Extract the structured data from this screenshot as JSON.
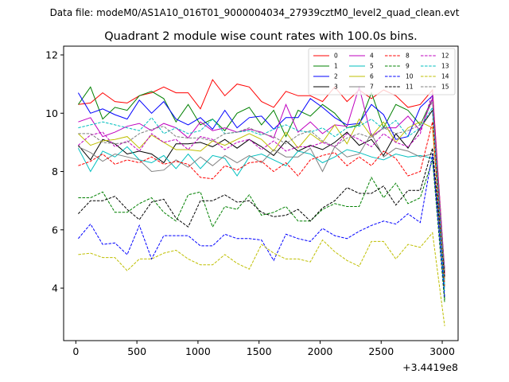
{
  "header": {
    "file_label": "Data file: modeM0/AS1A10_016T01_9000004034_27939cztM0_level2_quad_clean.evt"
  },
  "chart_data": {
    "type": "line",
    "title": "Quadrant 2 module wise count rates with 100.0s bins.",
    "xlabel": "",
    "ylabel": "",
    "x_offset_label": "+3.4419e8",
    "xlim": [
      -100,
      3130
    ],
    "ylim": [
      2.2,
      12.3
    ],
    "xticks": [
      0,
      500,
      1000,
      1500,
      2000,
      2500,
      3000
    ],
    "xtick_labels": [
      "0",
      "500",
      "1000",
      "1500",
      "2000",
      "2500",
      "3000"
    ],
    "yticks": [
      4,
      6,
      8,
      10,
      12
    ],
    "ytick_labels": [
      "4",
      "6",
      "8",
      "10",
      "12"
    ],
    "grid": false,
    "legend_position": "top-right",
    "x": [
      20,
      120,
      220,
      320,
      420,
      520,
      620,
      720,
      820,
      920,
      1020,
      1120,
      1220,
      1320,
      1420,
      1520,
      1620,
      1720,
      1820,
      1920,
      2020,
      2120,
      2220,
      2320,
      2420,
      2520,
      2620,
      2720,
      2820,
      2920,
      3020
    ],
    "series": [
      {
        "name": "0",
        "color": "#ff0000",
        "dash": "solid",
        "values": [
          10.3,
          10.35,
          10.7,
          10.4,
          10.35,
          10.6,
          10.7,
          10.9,
          10.7,
          10.7,
          10.15,
          11.15,
          10.6,
          11.0,
          10.9,
          10.4,
          10.2,
          10.75,
          10.6,
          10.6,
          10.4,
          10.9,
          10.4,
          10.8,
          10.5,
          10.8,
          10.6,
          10.2,
          10.3,
          10.8,
          4.5
        ]
      },
      {
        "name": "1",
        "color": "#008000",
        "dash": "solid",
        "values": [
          10.3,
          10.9,
          9.8,
          10.2,
          10.1,
          10.6,
          10.75,
          10.5,
          9.7,
          10.3,
          9.6,
          9.8,
          9.4,
          10.0,
          10.2,
          9.6,
          10.1,
          9.2,
          10.1,
          9.9,
          10.3,
          10.0,
          9.5,
          9.6,
          10.7,
          9.5,
          10.3,
          10.1,
          9.6,
          10.5,
          3.6
        ]
      },
      {
        "name": "2",
        "color": "#0000ff",
        "dash": "solid",
        "values": [
          10.7,
          10.0,
          10.15,
          9.95,
          9.8,
          10.45,
          10.0,
          10.4,
          9.8,
          9.6,
          9.85,
          9.45,
          10.1,
          9.5,
          9.85,
          9.9,
          9.45,
          9.85,
          9.85,
          10.5,
          10.2,
          9.85,
          9.6,
          9.65,
          10.3,
          9.95,
          9.1,
          9.2,
          10.2,
          10.6,
          4.3
        ]
      },
      {
        "name": "3",
        "color": "#000000",
        "dash": "solid",
        "values": [
          8.9,
          8.4,
          9.1,
          8.95,
          8.6,
          8.7,
          8.6,
          8.3,
          8.95,
          8.95,
          9.0,
          8.85,
          9.1,
          8.8,
          9.1,
          8.85,
          8.55,
          9.05,
          8.7,
          8.9,
          8.75,
          9.0,
          9.35,
          8.9,
          9.1,
          8.55,
          9.3,
          8.8,
          9.5,
          10.1,
          4.6
        ]
      },
      {
        "name": "4",
        "color": "#bf00bf",
        "dash": "solid",
        "values": [
          9.7,
          9.85,
          9.2,
          9.35,
          9.55,
          9.65,
          9.4,
          9.65,
          9.5,
          9.15,
          9.7,
          9.4,
          9.5,
          9.35,
          9.45,
          9.35,
          9.15,
          10.3,
          9.35,
          9.7,
          9.3,
          9.6,
          9.55,
          10.9,
          9.2,
          9.5,
          9.5,
          9.9,
          9.4,
          10.5,
          4.4
        ]
      },
      {
        "name": "5",
        "color": "#00bfbf",
        "dash": "solid",
        "values": [
          8.8,
          8.0,
          8.7,
          8.5,
          8.85,
          8.4,
          8.3,
          8.55,
          8.1,
          8.6,
          8.1,
          8.55,
          8.45,
          7.85,
          8.5,
          8.6,
          8.4,
          8.2,
          8.7,
          8.6,
          8.3,
          8.5,
          8.75,
          8.65,
          8.5,
          8.4,
          8.6,
          8.5,
          8.55,
          8.45,
          4.1
        ]
      },
      {
        "name": "6",
        "color": "#bfbf00",
        "dash": "solid",
        "values": [
          9.3,
          8.9,
          9.05,
          9.1,
          9.2,
          8.8,
          9.25,
          9.0,
          8.75,
          8.75,
          8.7,
          9.05,
          8.9,
          9.1,
          9.3,
          9.1,
          8.7,
          9.35,
          8.8,
          9.3,
          9.0,
          9.6,
          8.95,
          9.8,
          9.2,
          9.7,
          9.0,
          9.5,
          9.7,
          9.5,
          4.3
        ]
      },
      {
        "name": "7",
        "color": "#808080",
        "dash": "solid",
        "values": [
          8.85,
          8.65,
          8.35,
          8.6,
          8.5,
          8.4,
          8.0,
          8.05,
          8.4,
          8.15,
          8.5,
          8.2,
          8.55,
          8.3,
          8.55,
          8.3,
          8.75,
          8.5,
          8.5,
          8.8,
          8.0,
          8.85,
          8.5,
          8.6,
          9.3,
          8.5,
          8.8,
          8.7,
          8.5,
          8.6,
          4.2
        ]
      },
      {
        "name": "8",
        "color": "#ff0000",
        "dash": "dashed",
        "values": [
          8.2,
          8.35,
          8.6,
          8.25,
          8.4,
          8.3,
          8.5,
          8.25,
          8.35,
          8.25,
          7.8,
          7.75,
          8.2,
          8.05,
          8.3,
          8.35,
          8.0,
          8.3,
          7.85,
          8.4,
          8.55,
          8.65,
          8.2,
          8.5,
          8.2,
          8.7,
          8.45,
          7.85,
          8.0,
          9.7,
          4.0
        ]
      },
      {
        "name": "9",
        "color": "#008000",
        "dash": "dashed",
        "values": [
          7.1,
          7.1,
          7.3,
          6.6,
          6.6,
          6.9,
          7.1,
          6.6,
          6.3,
          7.2,
          7.3,
          6.1,
          6.8,
          6.7,
          7.2,
          6.5,
          6.6,
          6.8,
          6.3,
          6.3,
          6.7,
          6.9,
          6.8,
          6.8,
          7.8,
          7.1,
          7.6,
          6.9,
          7.1,
          8.4,
          3.5
        ]
      },
      {
        "name": "10",
        "color": "#0000ff",
        "dash": "dashed",
        "values": [
          5.7,
          6.2,
          5.5,
          5.55,
          5.15,
          6.15,
          5.0,
          5.8,
          5.8,
          5.8,
          5.45,
          5.45,
          5.85,
          5.7,
          5.7,
          5.65,
          4.95,
          5.85,
          5.7,
          5.6,
          6.05,
          5.8,
          5.7,
          5.95,
          6.15,
          6.3,
          6.2,
          6.55,
          6.25,
          8.6,
          3.7
        ]
      },
      {
        "name": "11",
        "color": "#000000",
        "dash": "dashed",
        "values": [
          6.55,
          7.0,
          7.0,
          7.15,
          6.7,
          6.35,
          6.95,
          7.05,
          6.4,
          6.1,
          7.0,
          7.0,
          7.2,
          6.95,
          7.0,
          6.6,
          6.45,
          6.5,
          6.7,
          6.3,
          6.75,
          7.0,
          7.45,
          7.25,
          7.25,
          7.5,
          6.85,
          7.35,
          7.35,
          8.8,
          4.4
        ]
      },
      {
        "name": "12",
        "color": "#bf00bf",
        "dash": "dashed",
        "values": [
          8.9,
          9.25,
          9.35,
          8.85,
          9.05,
          8.7,
          9.3,
          9.0,
          9.1,
          8.75,
          9.2,
          9.1,
          8.75,
          9.0,
          9.1,
          8.75,
          9.05,
          8.7,
          8.85,
          8.85,
          9.0,
          8.85,
          9.3,
          9.1,
          8.85,
          9.3,
          9.0,
          8.85,
          9.3,
          10.7,
          4.6
        ]
      },
      {
        "name": "13",
        "color": "#00bfbf",
        "dash": "dashed",
        "values": [
          9.5,
          9.6,
          9.7,
          9.6,
          9.5,
          9.4,
          9.85,
          9.3,
          9.5,
          9.3,
          9.4,
          9.8,
          9.3,
          9.35,
          9.4,
          9.25,
          9.45,
          9.6,
          9.4,
          9.35,
          9.5,
          9.2,
          9.5,
          9.55,
          9.8,
          9.45,
          9.75,
          9.2,
          9.5,
          10.2,
          3.9
        ]
      },
      {
        "name": "14",
        "color": "#bfbf00",
        "dash": "dashed",
        "values": [
          5.15,
          5.2,
          5.05,
          5.05,
          4.6,
          5.0,
          5.0,
          5.2,
          5.3,
          5.0,
          4.8,
          4.8,
          5.15,
          4.85,
          4.65,
          5.5,
          5.2,
          5.0,
          5.0,
          4.9,
          5.65,
          5.25,
          4.95,
          4.75,
          5.6,
          5.6,
          5.0,
          5.5,
          5.4,
          5.9,
          2.7
        ]
      },
      {
        "name": "15",
        "color": "#808080",
        "dash": "dashed",
        "values": [
          9.3,
          9.3,
          9.0,
          8.95,
          9.0,
          9.3,
          9.45,
          9.55,
          9.2,
          9.15,
          9.15,
          9.05,
          9.3,
          9.35,
          9.5,
          9.3,
          9.2,
          8.95,
          9.25,
          9.4,
          9.05,
          8.85,
          9.15,
          9.3,
          9.15,
          9.5,
          9.3,
          9.4,
          9.6,
          10.4,
          4.6
        ]
      }
    ]
  }
}
